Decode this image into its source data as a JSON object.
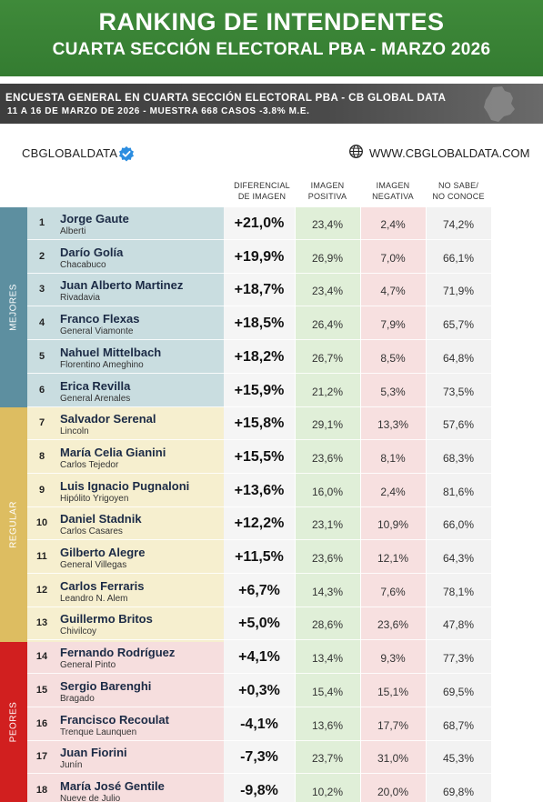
{
  "header": {
    "title": "RANKING DE INTENDENTES",
    "subtitle": "CUARTA SECCIÓN ELECTORAL PBA - MARZO 2026"
  },
  "subheader": {
    "line1": "ENCUESTA GENERAL EN CUARTA SECCIÓN ELECTORAL PBA - CB GLOBAL DATA",
    "line2": "11 A 16 DE MARZO  DE 2026 - MUESTRA 668  CASOS -3.8% M.E."
  },
  "brand": {
    "name": "CBGLOBALDATA",
    "website": "WWW.CBGLOBALDATA.COM"
  },
  "columns": {
    "diff": [
      "DIFERENCIAL",
      "DE IMAGEN"
    ],
    "pos": [
      "IMAGEN",
      "POSITIVA"
    ],
    "neg": [
      "IMAGEN",
      "NEGATIVA"
    ],
    "ns": [
      "NO SABE/",
      "NO CONOCE"
    ]
  },
  "categories": [
    {
      "label": "MEJORES",
      "color": "#5d8fa0",
      "band": "#c9dde0"
    },
    {
      "label": "REGULAR",
      "color": "#ddbd61",
      "band": "#f6efcf"
    },
    {
      "label": "PEORES",
      "color": "#d11f1f",
      "band": "#f6dede"
    }
  ],
  "colors": {
    "header_green": "#3a8436",
    "positive_bg": "#e0efd8",
    "negative_bg": "#f7e0e0",
    "neutral_bg": "#f2f2f2"
  },
  "rows": [
    {
      "rank": "1",
      "name": "Jorge Gaute",
      "place": "Alberti",
      "diff": "+21,0%",
      "pos": "23,4%",
      "neg": "2,4%",
      "ns": "74,2%"
    },
    {
      "rank": "2",
      "name": "Darío Golía",
      "place": "Chacabuco",
      "diff": "+19,9%",
      "pos": "26,9%",
      "neg": "7,0%",
      "ns": "66,1%"
    },
    {
      "rank": "3",
      "name": "Juan Alberto Martinez",
      "place": "Rivadavia",
      "diff": "+18,7%",
      "pos": "23,4%",
      "neg": "4,7%",
      "ns": "71,9%"
    },
    {
      "rank": "4",
      "name": "Franco Flexas",
      "place": "General Viamonte",
      "diff": "+18,5%",
      "pos": "26,4%",
      "neg": "7,9%",
      "ns": "65,7%"
    },
    {
      "rank": "5",
      "name": "Nahuel Mittelbach",
      "place": "Florentino Ameghino",
      "diff": "+18,2%",
      "pos": "26,7%",
      "neg": "8,5%",
      "ns": "64,8%"
    },
    {
      "rank": "6",
      "name": "Erica Revilla",
      "place": "General Arenales",
      "diff": "+15,9%",
      "pos": "21,2%",
      "neg": "5,3%",
      "ns": "73,5%"
    },
    {
      "rank": "7",
      "name": "Salvador Serenal",
      "place": "Lincoln",
      "diff": "+15,8%",
      "pos": "29,1%",
      "neg": "13,3%",
      "ns": "57,6%"
    },
    {
      "rank": "8",
      "name": "María Celia Gianini",
      "place": "Carlos Tejedor",
      "diff": "+15,5%",
      "pos": "23,6%",
      "neg": "8,1%",
      "ns": "68,3%"
    },
    {
      "rank": "9",
      "name": "Luis Ignacio Pugnaloni",
      "place": "Hipólito Yrigoyen",
      "diff": "+13,6%",
      "pos": "16,0%",
      "neg": "2,4%",
      "ns": "81,6%"
    },
    {
      "rank": "10",
      "name": "Daniel Stadnik",
      "place": "Carlos Casares",
      "diff": "+12,2%",
      "pos": "23,1%",
      "neg": "10,9%",
      "ns": "66,0%"
    },
    {
      "rank": "11",
      "name": "Gilberto Alegre",
      "place": "General Villegas",
      "diff": "+11,5%",
      "pos": "23,6%",
      "neg": "12,1%",
      "ns": "64,3%"
    },
    {
      "rank": "12",
      "name": "Carlos Ferraris",
      "place": "Leandro N. Alem",
      "diff": "+6,7%",
      "pos": "14,3%",
      "neg": "7,6%",
      "ns": "78,1%"
    },
    {
      "rank": "13",
      "name": "Guillermo Britos",
      "place": "Chivilcoy",
      "diff": "+5,0%",
      "pos": "28,6%",
      "neg": "23,6%",
      "ns": "47,8%"
    },
    {
      "rank": "14",
      "name": "Fernando Rodríguez",
      "place": "General Pinto",
      "diff": "+4,1%",
      "pos": "13,4%",
      "neg": "9,3%",
      "ns": "77,3%"
    },
    {
      "rank": "15",
      "name": "Sergio Barenghi",
      "place": "Bragado",
      "diff": "+0,3%",
      "pos": "15,4%",
      "neg": "15,1%",
      "ns": "69,5%"
    },
    {
      "rank": "16",
      "name": "Francisco Recoulat",
      "place": "Trenque Launquen",
      "diff": "-4,1%",
      "pos": "13,6%",
      "neg": "17,7%",
      "ns": "68,7%"
    },
    {
      "rank": "17",
      "name": "Juan Fiorini",
      "place": "Junín",
      "diff": "-7,3%",
      "pos": "23,7%",
      "neg": "31,0%",
      "ns": "45,3%"
    },
    {
      "rank": "18",
      "name": "María José Gentile",
      "place": "Nueve de Julio",
      "diff": "-9,8%",
      "pos": "10,2%",
      "neg": "20,0%",
      "ns": "69,8%"
    }
  ]
}
